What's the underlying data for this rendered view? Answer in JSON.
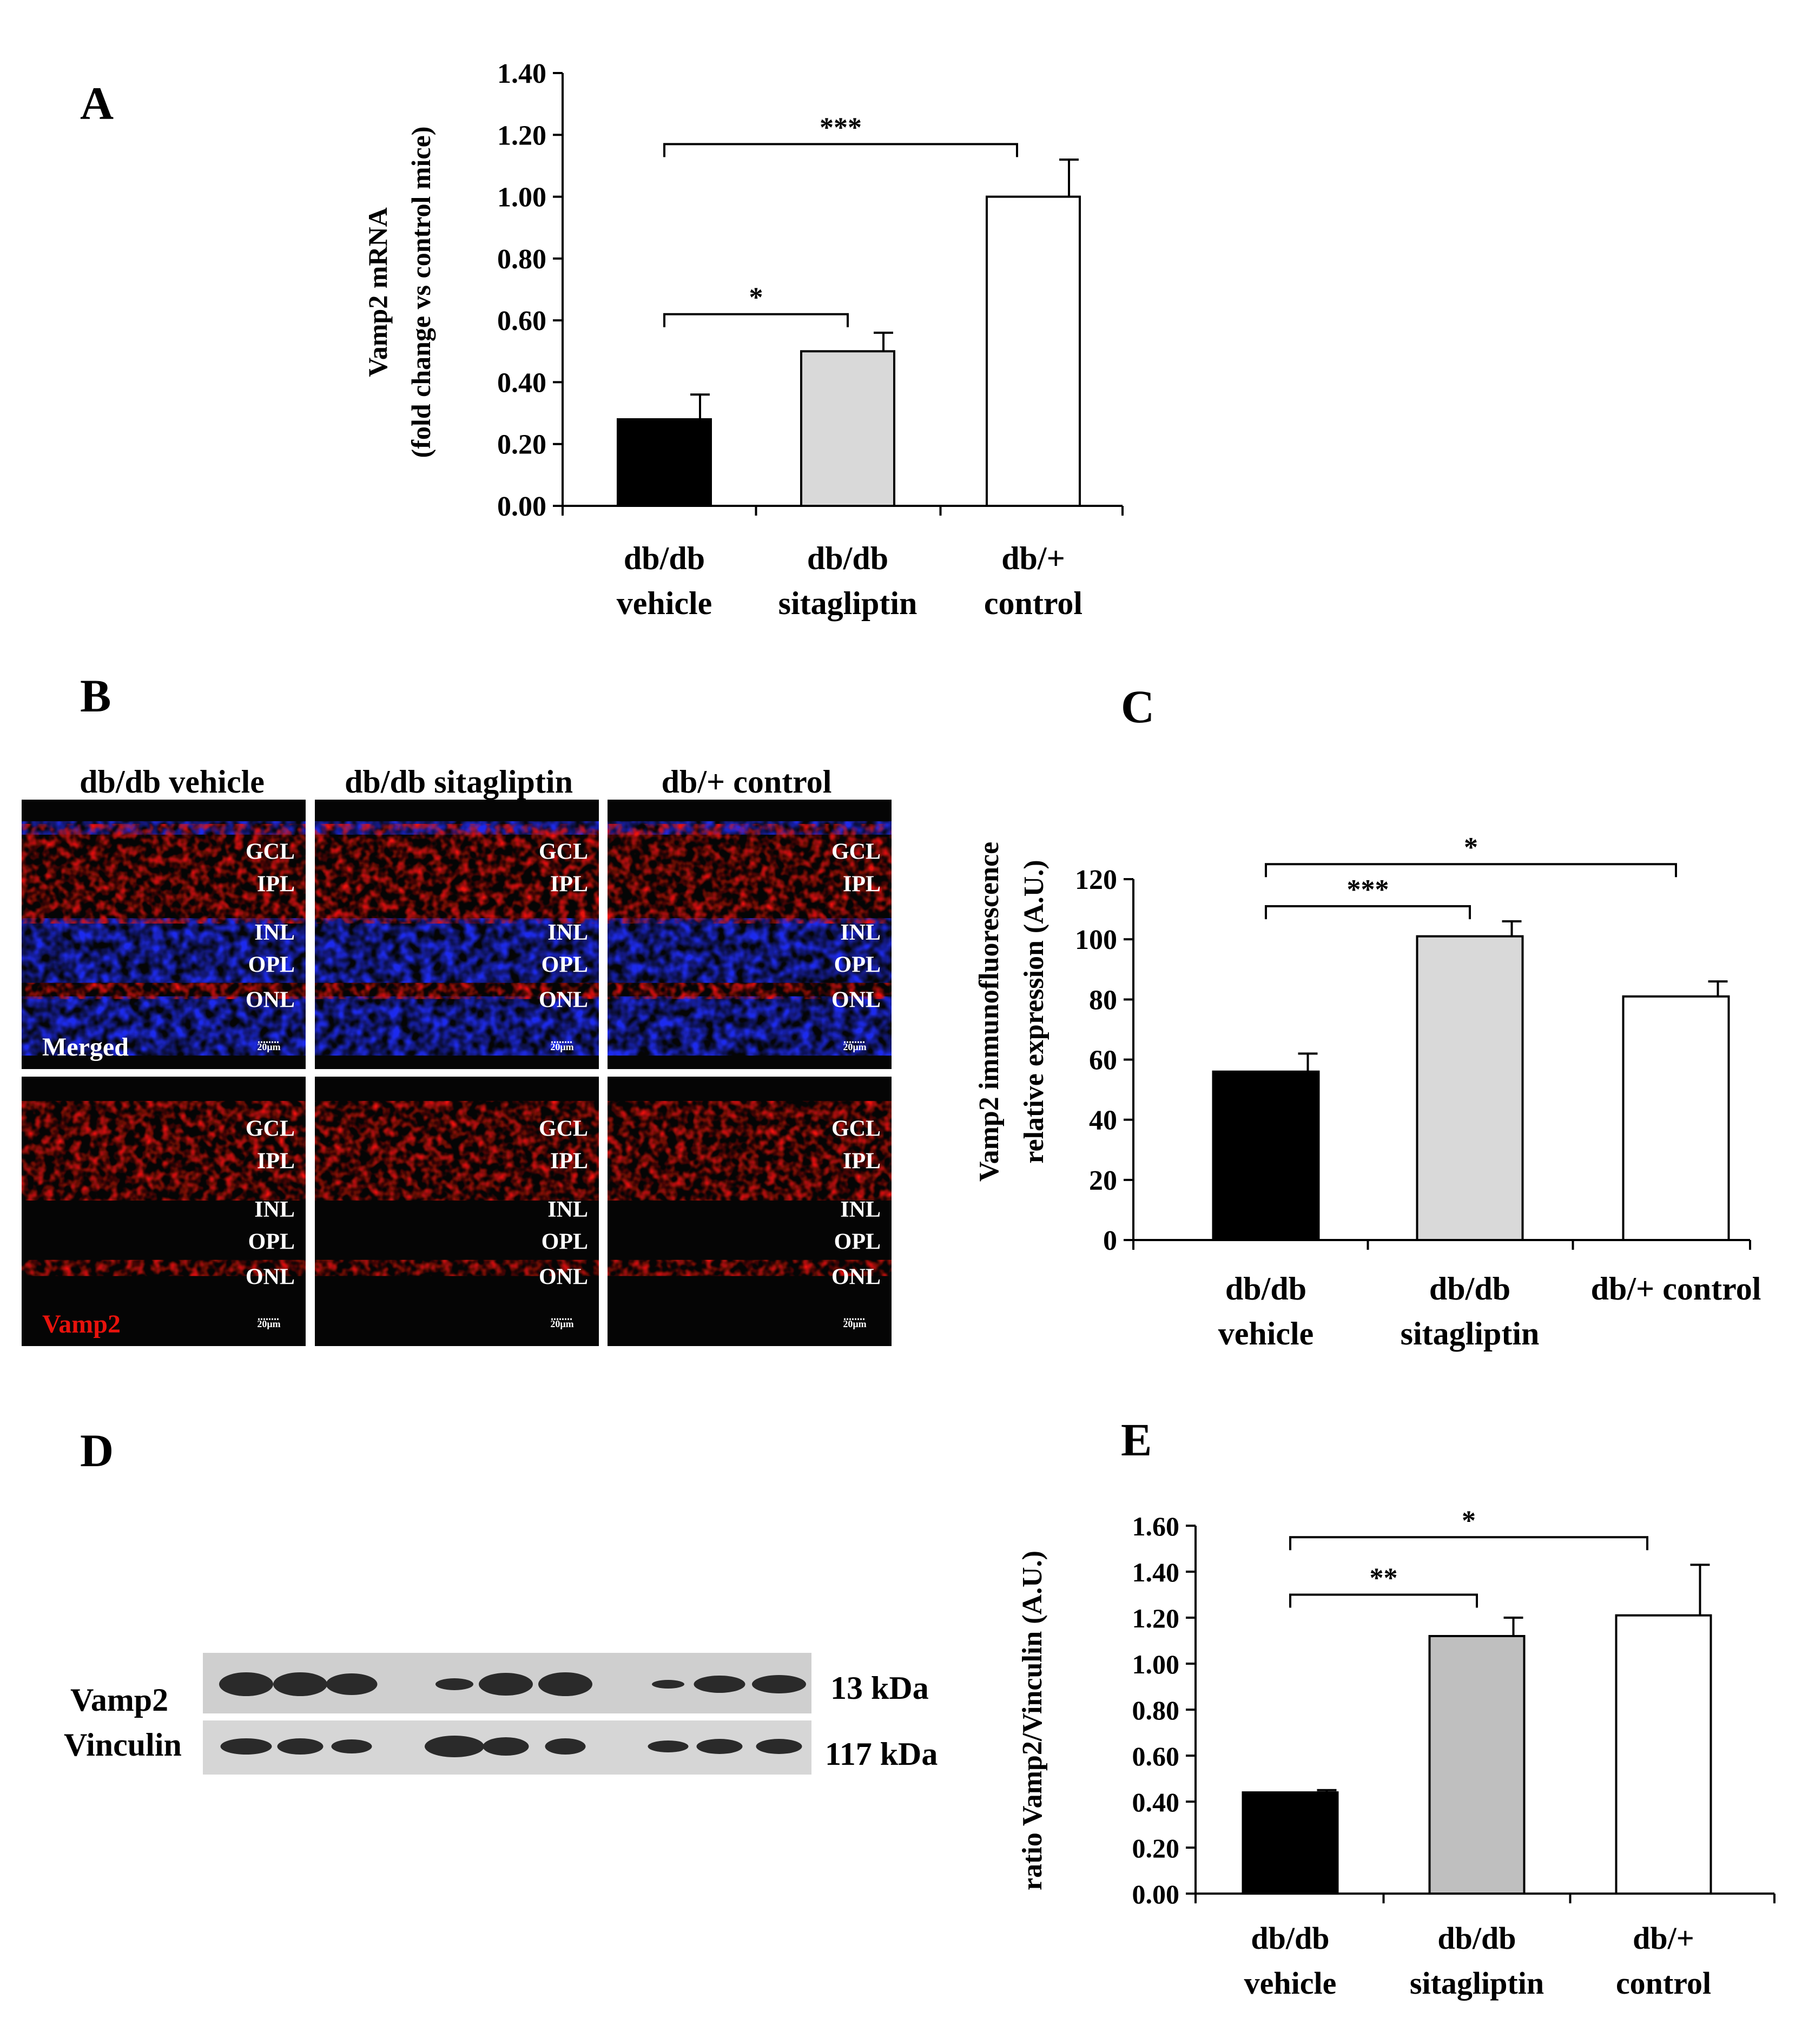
{
  "colors": {
    "vehicle": "#000000",
    "sitagliptin_A": "#d9d9d9",
    "sitagliptin_C": "#d9d9d9",
    "sitagliptin_E": "#bfbfbf",
    "control": "#ffffff",
    "retina_red": "#e8120c",
    "retina_blue": "#1f2cf0",
    "label_red": "#e8120c"
  },
  "panel_letters": {
    "A": "A",
    "B": "B",
    "C": "C",
    "D": "D",
    "E": "E"
  },
  "chart_data": [
    {
      "id": "A",
      "type": "bar",
      "categories": [
        [
          "db/db",
          "vehicle"
        ],
        [
          "db/db",
          "sitagliptin"
        ],
        [
          "db/+",
          "control"
        ]
      ],
      "values": [
        0.28,
        0.5,
        1.0
      ],
      "errors": [
        0.08,
        0.06,
        0.12
      ],
      "ylabel": [
        "Vamp2 mRNA",
        "(fold change vs control mice)"
      ],
      "ylim": [
        0,
        1.4
      ],
      "yticks": [
        "0.00",
        "0.20",
        "0.40",
        "0.60",
        "0.80",
        "1.00",
        "1.20",
        "1.40"
      ],
      "significance": [
        {
          "from": 0,
          "to": 2,
          "label": "***",
          "y": 1.17
        },
        {
          "from": 0,
          "to": 1,
          "label": "*",
          "y": 0.62
        }
      ]
    },
    {
      "id": "C",
      "type": "bar",
      "categories": [
        [
          "db/db",
          "vehicle"
        ],
        [
          "db/db",
          "sitagliptin"
        ],
        [
          "db/+ control"
        ]
      ],
      "values": [
        56,
        101,
        81
      ],
      "errors": [
        6,
        5,
        5
      ],
      "ylabel": [
        "Vamp2 immunofluorescence",
        "relative expression (A.U.)"
      ],
      "ylim": [
        0,
        120
      ],
      "yticks": [
        "0",
        "20",
        "40",
        "60",
        "80",
        "100",
        "120"
      ],
      "significance": [
        {
          "from": 0,
          "to": 2,
          "label": "*",
          "y": 125
        },
        {
          "from": 0,
          "to": 1,
          "label": "***",
          "y": 111
        }
      ]
    },
    {
      "id": "E",
      "type": "bar",
      "categories": [
        [
          "db/db",
          "vehicle"
        ],
        [
          "db/db",
          "sitagliptin"
        ],
        [
          "db/+",
          "control"
        ]
      ],
      "values": [
        0.44,
        1.12,
        1.21
      ],
      "errors": [
        0.01,
        0.08,
        0.22
      ],
      "ylabel": [
        "ratio Vamp2/Vinculin  (A.U.)"
      ],
      "ylim": [
        0,
        1.6
      ],
      "yticks": [
        "0.00",
        "0.20",
        "0.40",
        "0.60",
        "0.80",
        "1.00",
        "1.20",
        "1.40",
        "1.60"
      ],
      "significance": [
        {
          "from": 0,
          "to": 2,
          "label": "*",
          "y": 1.55
        },
        {
          "from": 0,
          "to": 1,
          "label": "**",
          "y": 1.3
        }
      ]
    }
  ],
  "panelB": {
    "columns": [
      "db/db vehicle",
      "db/db sitagliptin",
      "db/+ control"
    ],
    "row_labels": [
      "Merged",
      "Vamp2"
    ],
    "layers": [
      "GCL",
      "IPL",
      "INL",
      "OPL",
      "ONL"
    ],
    "scale_bar": "20µm"
  },
  "panelD": {
    "bands": [
      {
        "name": "Vamp2",
        "size": "13 kDa"
      },
      {
        "name": "Vinculin",
        "size": "117 kDa"
      }
    ]
  }
}
